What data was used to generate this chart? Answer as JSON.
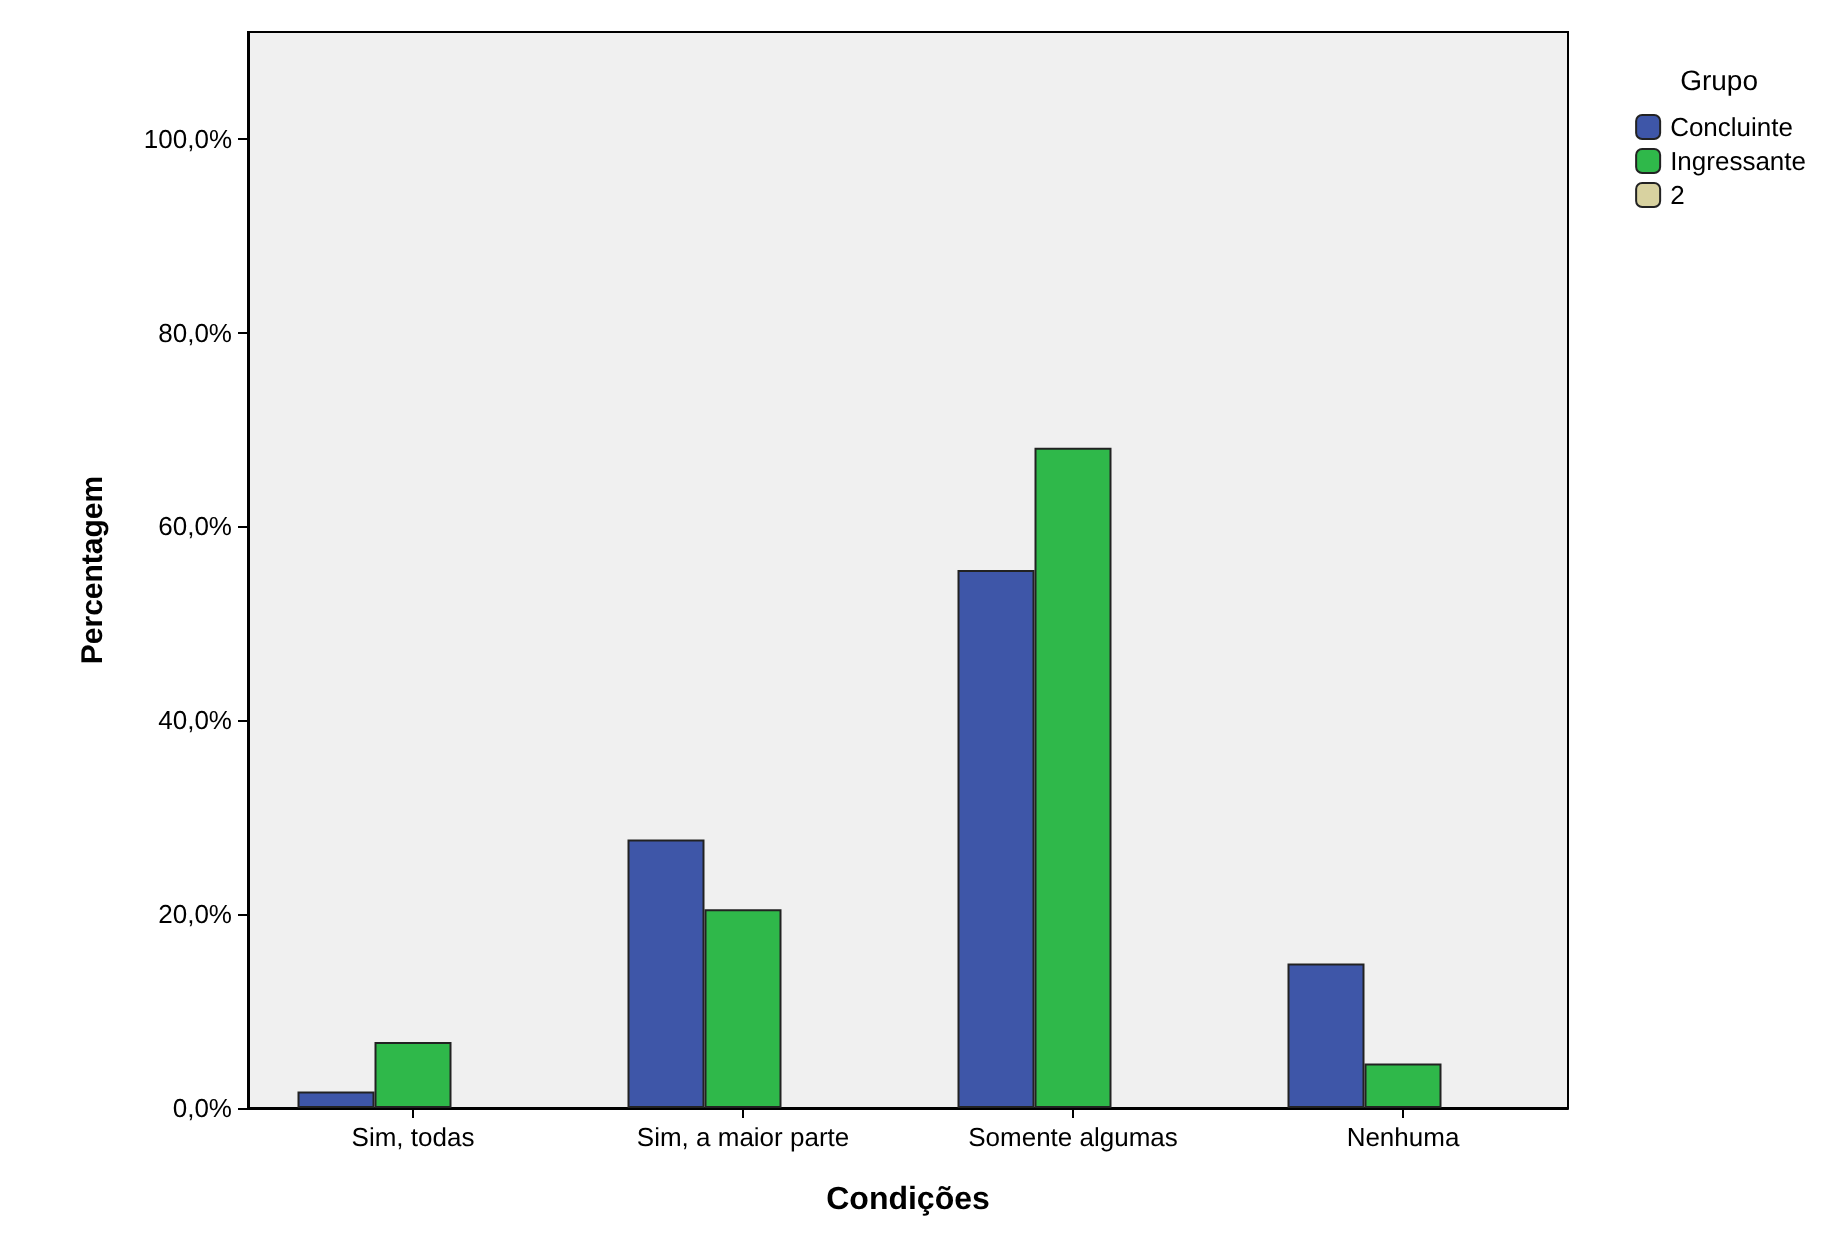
{
  "chart_data": {
    "type": "bar",
    "xlabel": "Condições",
    "ylabel": "Percentagem",
    "legend_title": "Grupo",
    "categories": [
      "Sim, todas",
      "Sim, a maior parte",
      "Somente algumas",
      "Nenhuma"
    ],
    "series": [
      {
        "name": "Concluinte",
        "color": "#3e56a8",
        "values": [
          1.7,
          27.7,
          55.5,
          14.9
        ]
      },
      {
        "name": "Ingressante",
        "color": "#2fb84a",
        "values": [
          6.8,
          20.5,
          68.1,
          4.6
        ]
      },
      {
        "name": "2",
        "color": "#d8d2a0",
        "values": [
          null,
          null,
          null,
          null
        ]
      }
    ],
    "ylim": [
      0,
      111
    ],
    "yticks": [
      {
        "value": 0,
        "label": "0,0%"
      },
      {
        "value": 20,
        "label": "20,0%"
      },
      {
        "value": 40,
        "label": "40,0%"
      },
      {
        "value": 60,
        "label": "60,0%"
      },
      {
        "value": 80,
        "label": "80,0%"
      },
      {
        "value": 100,
        "label": "100,0%"
      }
    ],
    "grid": false,
    "legend": "top right"
  }
}
